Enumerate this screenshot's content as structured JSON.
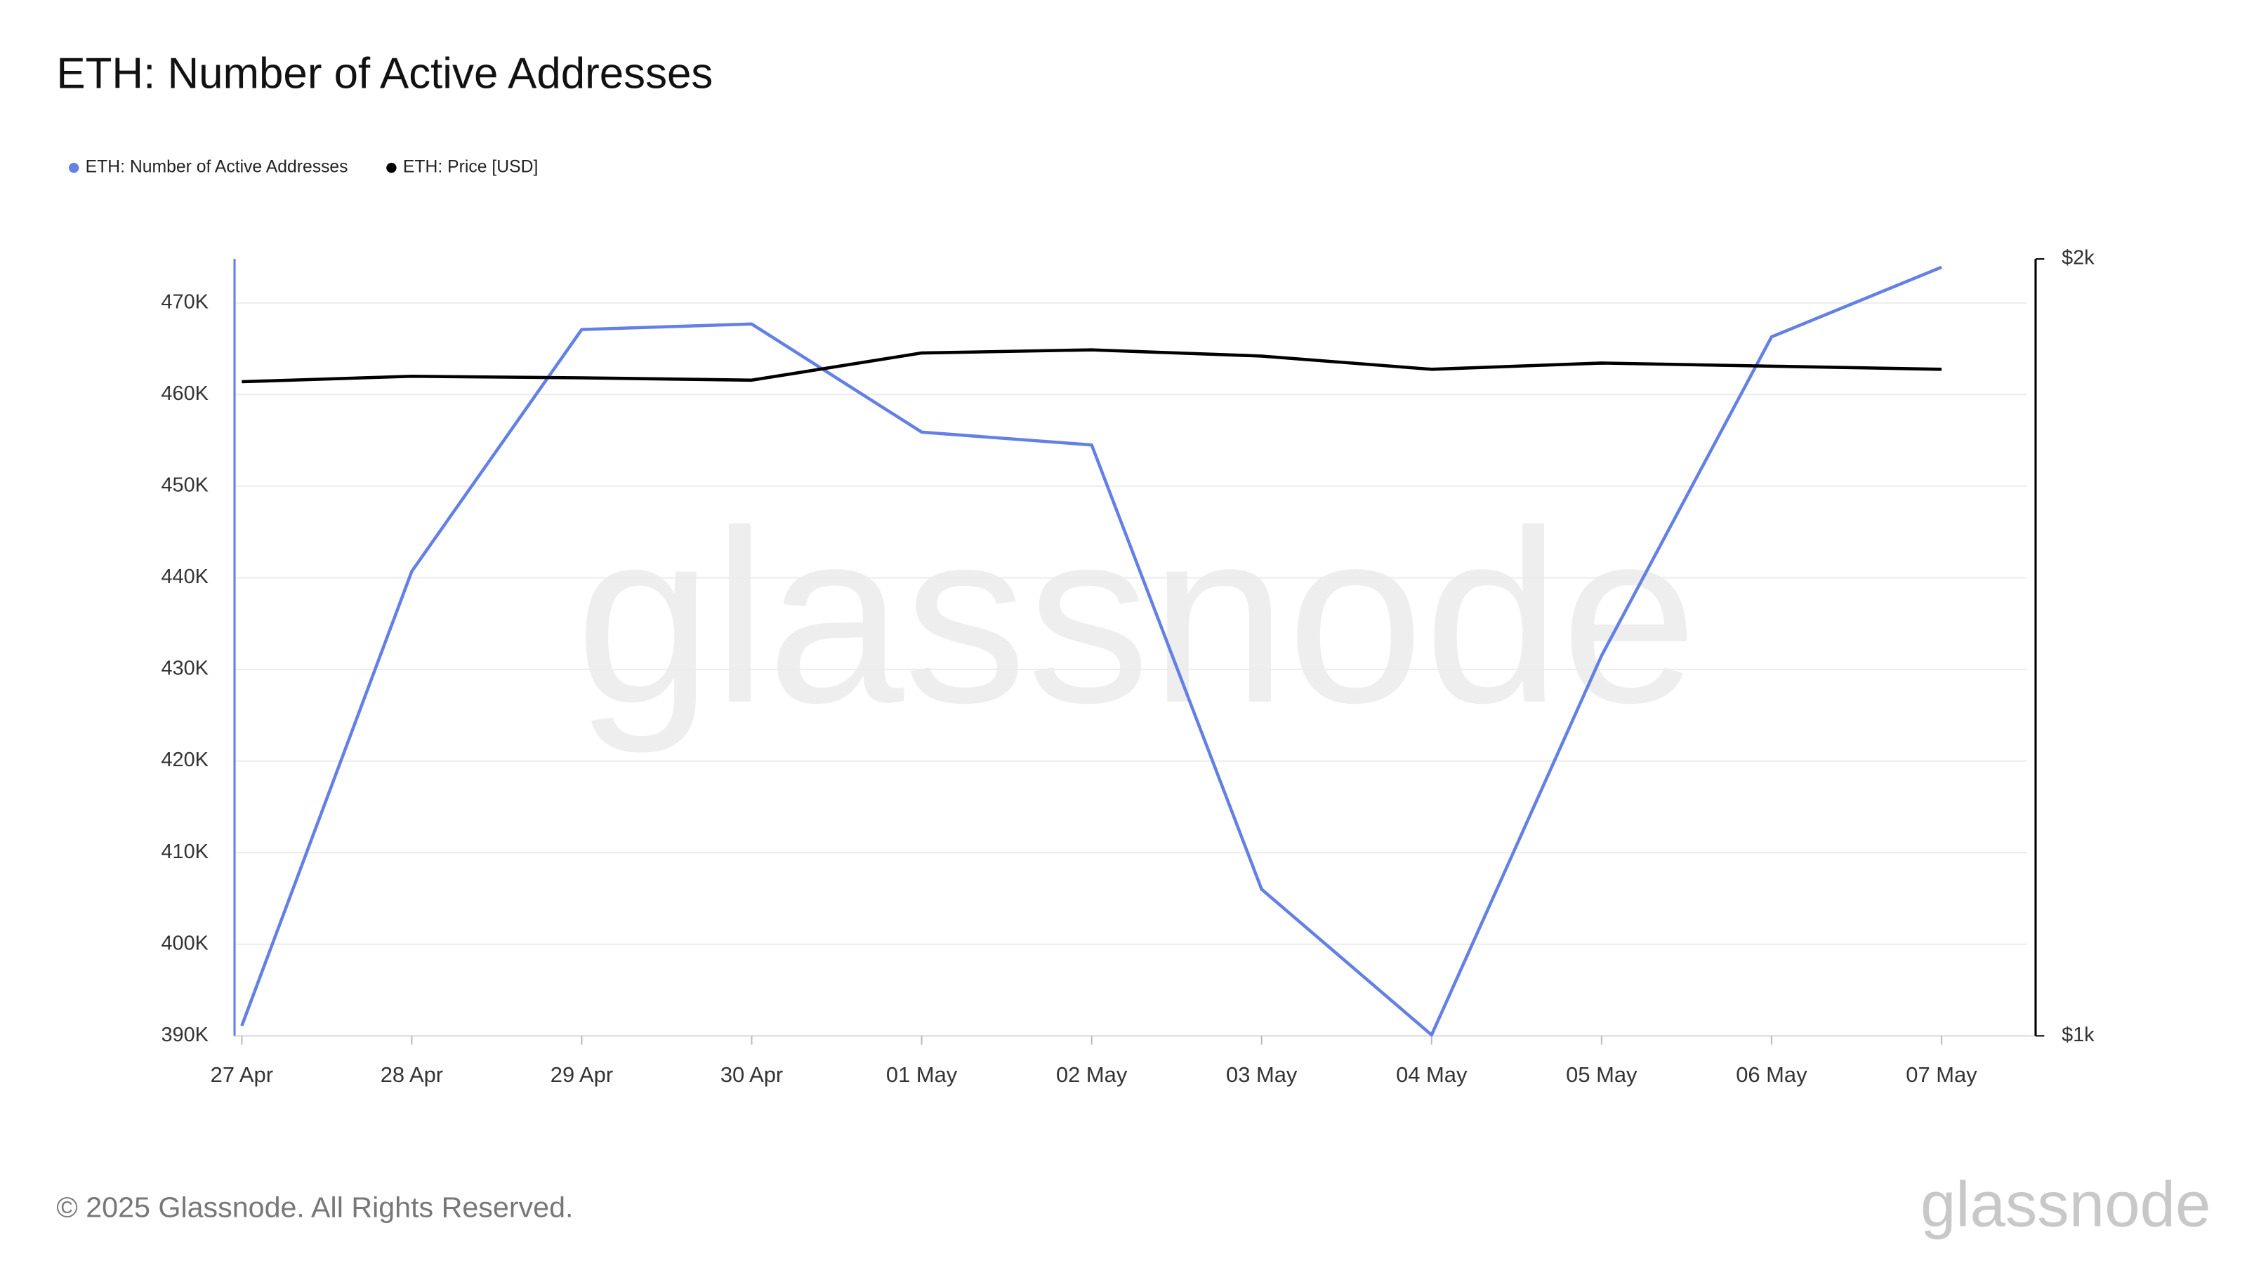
{
  "chart_data": {
    "type": "line",
    "title": "ETH: Number of Active Addresses",
    "watermark": "glassnode",
    "footer": "© 2025 Glassnode. All Rights Reserved.",
    "logo": "glassnode",
    "categories": [
      "27 Apr",
      "28 Apr",
      "29 Apr",
      "30 Apr",
      "01 May",
      "02 May",
      "03 May",
      "04 May",
      "05 May",
      "06 May",
      "07 May"
    ],
    "series": [
      {
        "name": "ETH: Number of Active Addresses",
        "color": "#6380e5",
        "values": [
          391100,
          440700,
          467100,
          467700,
          455900,
          454500,
          406000,
          390100,
          431500,
          466300,
          473900
        ]
      },
      {
        "name": "ETH: Price [USD]",
        "color": "#000000",
        "axis": "y2",
        "values": [
          1842,
          1849,
          1847,
          1844,
          1879,
          1883,
          1875,
          1858,
          1866,
          1862,
          1858
        ]
      }
    ],
    "ylim": [
      390000,
      474800
    ],
    "yticks": [
      {
        "value": 390000,
        "label": "390K"
      },
      {
        "value": 400000,
        "label": "400K"
      },
      {
        "value": 410000,
        "label": "410K"
      },
      {
        "value": 420000,
        "label": "420K"
      },
      {
        "value": 430000,
        "label": "430K"
      },
      {
        "value": 440000,
        "label": "440K"
      },
      {
        "value": 450000,
        "label": "450K"
      },
      {
        "value": 460000,
        "label": "460K"
      },
      {
        "value": 470000,
        "label": "470K"
      }
    ],
    "y2lim": [
      1000,
      2000
    ],
    "y2ticks": [
      {
        "value": 1000,
        "label": "$1k"
      },
      {
        "value": 2000,
        "label": "$2k"
      }
    ],
    "grid": true,
    "legend": "top-left"
  }
}
